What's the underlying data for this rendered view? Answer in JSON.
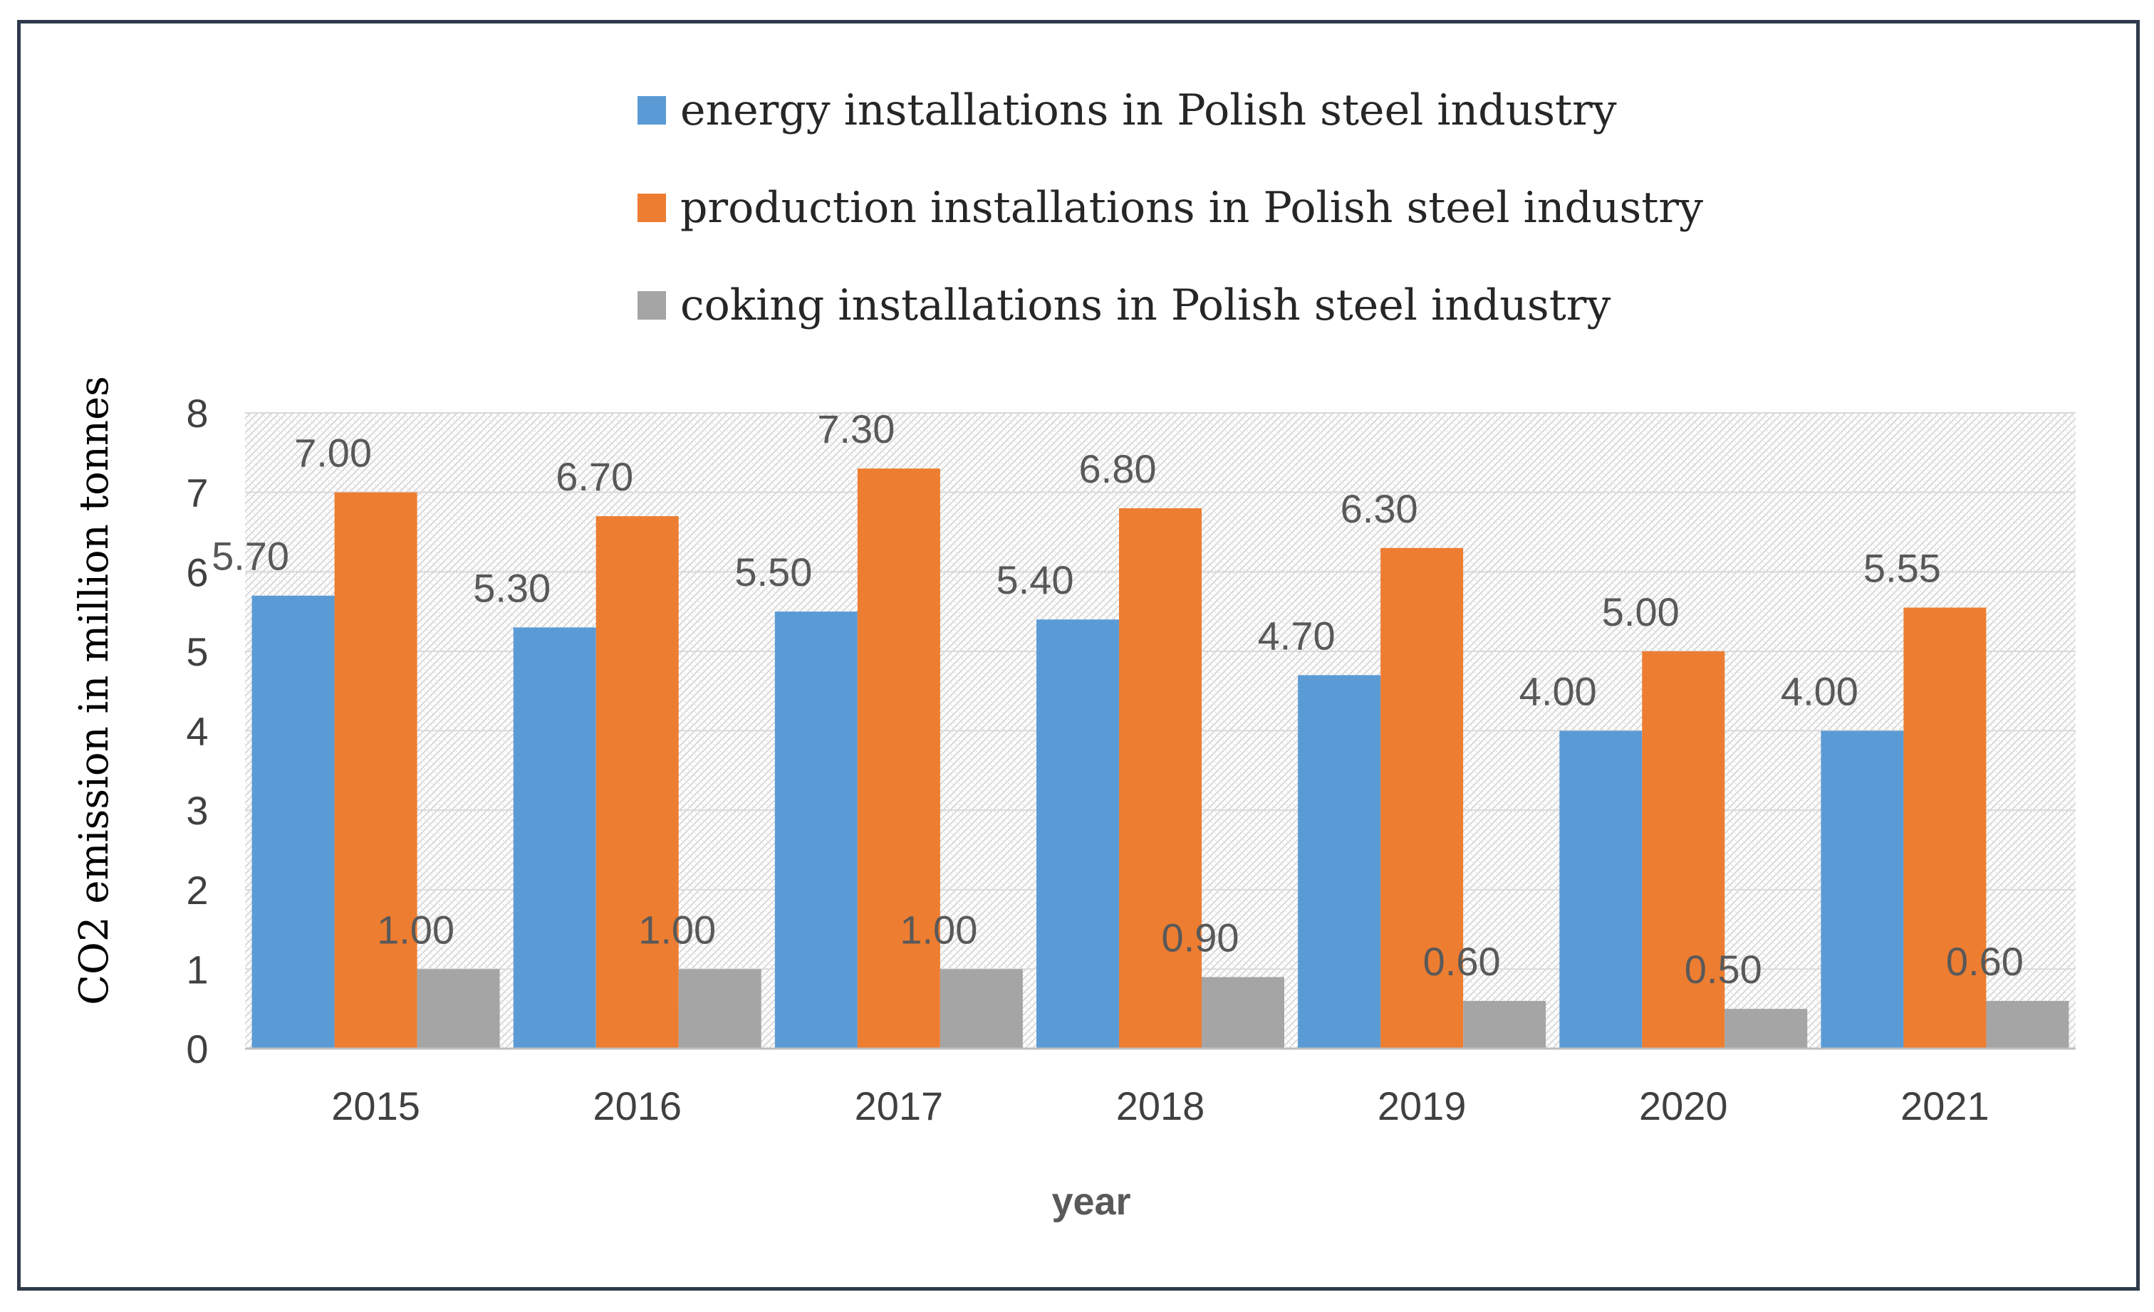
{
  "chart_data": {
    "type": "bar",
    "categories": [
      "2015",
      "2016",
      "2017",
      "2018",
      "2019",
      "2020",
      "2021"
    ],
    "series": [
      {
        "name": "energy installations in Polish steel industry",
        "values": [
          5.7,
          5.3,
          5.5,
          5.4,
          4.7,
          4.0,
          4.0
        ],
        "labels": [
          "5.70",
          "5.30",
          "5.50",
          "5.40",
          "4.70",
          "4.00",
          "4.00"
        ],
        "color": "#5b9bd5"
      },
      {
        "name": "production installations in Polish steel industry",
        "values": [
          7.0,
          6.7,
          7.3,
          6.8,
          6.3,
          5.0,
          5.55
        ],
        "labels": [
          "7.00",
          "6.70",
          "7.30",
          "6.80",
          "6.30",
          "5.00",
          "5.55"
        ],
        "color": "#ed7d31"
      },
      {
        "name": "coking installations in Polish steel industry",
        "values": [
          1.0,
          1.0,
          1.0,
          0.9,
          0.6,
          0.5,
          0.6
        ],
        "labels": [
          "1.00",
          "1.00",
          "1.00",
          "0.90",
          "0.60",
          "0.50",
          "0.60"
        ],
        "color": "#a5a5a5"
      }
    ],
    "xlabel": "year",
    "ylabel": "CO2 emission in million tonnes",
    "ylim": [
      0,
      8
    ],
    "yticks": [
      "0",
      "1",
      "2",
      "3",
      "4",
      "5",
      "6",
      "7",
      "8"
    ],
    "grid": true,
    "legend_position": "top"
  }
}
